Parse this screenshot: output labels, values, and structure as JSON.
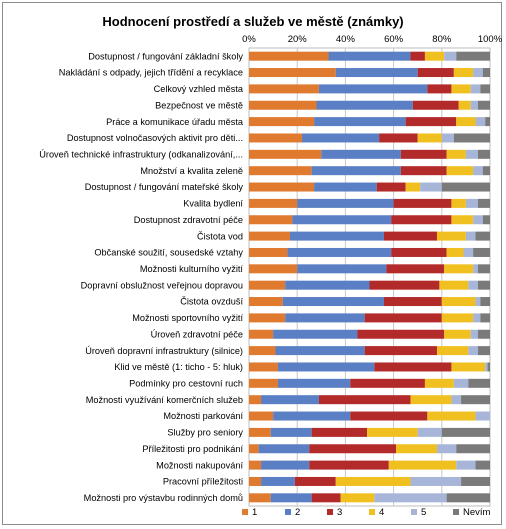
{
  "chart_data": {
    "type": "bar",
    "orientation": "horizontal",
    "stacked": "percent",
    "title": "Hodnocení prostředí a služeb ve městě (známky)",
    "xlim": [
      0,
      100
    ],
    "x_ticks": [
      "0%",
      "20%",
      "40%",
      "60%",
      "80%",
      "100%"
    ],
    "grid": true,
    "legend_position": "bottom",
    "categories": [
      "Dostupnost / fungování základní školy",
      "Nakládání s odpady, jejich třídění a recyklace",
      "Celkový vzhled města",
      "Bezpečnost ve městě",
      "Práce a komunikace úřadu města",
      "Dostupnost volnočasových aktivit pro děti...",
      "Úroveň technické infrastruktury (odkanalizování,...",
      "Množství a kvalita zeleně",
      "Dostupnost / fungování mateřské školy",
      "Kvalita bydlení",
      "Dostupnost zdravotní péče",
      "Čistota vod",
      "Občanské soužití, sousedské vztahy",
      "Možnosti kulturního vyžití",
      "Dopravní obslužnost veřejnou dopravou",
      "Čistota ovzduší",
      "Možnosti sportovního vyžití",
      "Úroveň zdravotní péče",
      "Úroveň dopravní infrastruktury (silnice)",
      "Klid ve městě (1: ticho - 5: hluk)",
      "Podmínky pro cestovní ruch",
      "Možnosti využívání komerčních služeb",
      "Možnosti parkování",
      "Služby pro seniory",
      "Příležitosti pro podnikání",
      "Možnosti nakupování",
      "Pracovní příležitosti",
      "Možnosti pro výstavbu rodinných domů"
    ],
    "series": [
      {
        "name": "1",
        "color": "#e07a2f",
        "values": [
          33,
          36,
          29,
          28,
          27,
          22,
          30,
          26,
          27,
          20,
          18,
          17,
          16,
          20,
          15,
          14,
          15,
          10,
          11,
          12,
          12,
          5,
          10,
          9,
          4,
          5,
          5,
          9
        ]
      },
      {
        "name": "2",
        "color": "#5b7fc4",
        "values": [
          34,
          34,
          45,
          40,
          38,
          32,
          33,
          37,
          26,
          40,
          41,
          39,
          43,
          37,
          35,
          42,
          33,
          35,
          37,
          40,
          30,
          24,
          32,
          17,
          21,
          20,
          14,
          17
        ]
      },
      {
        "name": "3",
        "color": "#b32a2a",
        "values": [
          6,
          15,
          10,
          19,
          21,
          16,
          19,
          19,
          12,
          24,
          25,
          22,
          23,
          24,
          29,
          24,
          32,
          36,
          30,
          32,
          31,
          38,
          32,
          23,
          36,
          33,
          17,
          12
        ]
      },
      {
        "name": "4",
        "color": "#f0c020",
        "values": [
          8,
          8,
          8,
          5,
          8,
          10,
          8,
          11,
          6,
          6,
          9,
          12,
          7,
          12,
          12,
          14,
          13,
          11,
          13,
          14,
          12,
          17,
          20,
          21,
          17,
          28,
          31,
          14
        ]
      },
      {
        "name": "5",
        "color": "#a7b5d9",
        "values": [
          5,
          4,
          4,
          3,
          4,
          5,
          5,
          4,
          9,
          5,
          4,
          4,
          4,
          2,
          4,
          2,
          3,
          3,
          4,
          1,
          6,
          4,
          6,
          10,
          8,
          8,
          21,
          30
        ]
      },
      {
        "name": "Nevím",
        "color": "#7a7a7a",
        "values": [
          14,
          3,
          4,
          5,
          2,
          15,
          5,
          3,
          20,
          5,
          3,
          6,
          7,
          5,
          5,
          4,
          4,
          5,
          5,
          1,
          9,
          12,
          0,
          20,
          14,
          6,
          12,
          18
        ]
      }
    ]
  }
}
